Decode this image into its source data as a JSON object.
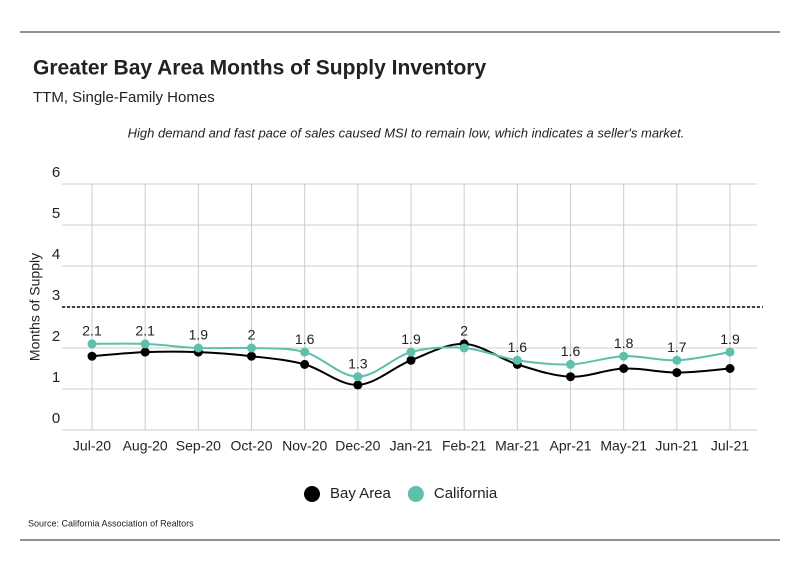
{
  "chart_data": {
    "type": "line",
    "title": "Greater Bay Area Months of Supply Inventory",
    "subtitle": "TTM, Single-Family Homes",
    "annotation": "High demand and fast pace of sales caused MSI to remain low, which indicates a seller's market.",
    "y_label": "Months of Supply",
    "source": "Source:  California Association of Realtors",
    "categories": [
      "Jul-20",
      "Aug-20",
      "Sep-20",
      "Oct-20",
      "Nov-20",
      "Dec-20",
      "Jan-21",
      "Feb-21",
      "Mar-21",
      "Apr-21",
      "May-21",
      "Jun-21",
      "Jul-21"
    ],
    "series": [
      {
        "name": "Bay Area",
        "color": "#000000",
        "values": [
          1.8,
          1.9,
          1.9,
          1.8,
          1.6,
          1.1,
          1.7,
          2.1,
          1.6,
          1.3,
          1.5,
          1.4,
          1.5
        ]
      },
      {
        "name": "California",
        "color": "#5cc0aa",
        "values": [
          2.1,
          2.1,
          2.0,
          2.0,
          1.9,
          1.3,
          1.9,
          2.0,
          1.7,
          1.6,
          1.8,
          1.7,
          1.9
        ]
      }
    ],
    "data_labels": [
      2.1,
      2.1,
      1.9,
      2.0,
      1.6,
      1.3,
      1.9,
      2.0,
      1.6,
      1.6,
      1.8,
      1.7,
      1.9
    ],
    "reference_line": 3,
    "ylim": [
      0,
      6
    ],
    "yticks": [
      0,
      1,
      2,
      3,
      4,
      5,
      6
    ],
    "grid": true,
    "legend": "bottom"
  }
}
